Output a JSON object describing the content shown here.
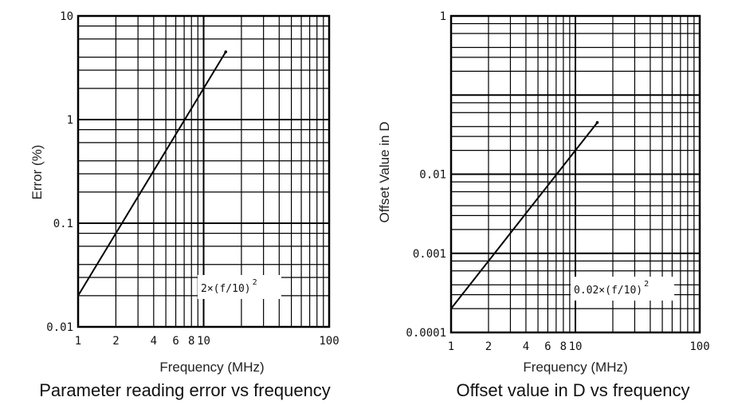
{
  "chart_data": [
    {
      "type": "line",
      "title": "Parameter reading error vs frequency",
      "xlabel": "Frequency (MHz)",
      "ylabel": "Error (%)",
      "xscale": "log",
      "yscale": "log",
      "xlim": [
        1,
        100
      ],
      "ylim": [
        0.01,
        10
      ],
      "grid": true,
      "x_tick_labels": [
        {
          "value": 1,
          "label": "1"
        },
        {
          "value": 2,
          "label": "2"
        },
        {
          "value": 4,
          "label": "4"
        },
        {
          "value": 6,
          "label": "6"
        },
        {
          "value": 8,
          "label": "8"
        },
        {
          "value": 10,
          "label": "10"
        },
        {
          "value": 100,
          "label": "100"
        }
      ],
      "y_tick_labels": [
        {
          "value": 0.01,
          "label": "0.01"
        },
        {
          "value": 0.1,
          "label": "0.1"
        },
        {
          "value": 1,
          "label": "1"
        },
        {
          "value": 10,
          "label": "10"
        }
      ],
      "series": [
        {
          "formula_coefficient": 2,
          "x": [
            1,
            2,
            4,
            6,
            10,
            15
          ],
          "y": [
            0.02,
            0.08,
            0.32,
            0.72,
            2.0,
            4.5
          ]
        }
      ],
      "annotation": {
        "text": "2×(f/10)",
        "superscript": "2"
      }
    },
    {
      "type": "line",
      "title": "Offset value in D vs frequency",
      "xlabel": "Frequency (MHz)",
      "ylabel": "Offset Value in D",
      "xscale": "log",
      "yscale": "log",
      "xlim": [
        1,
        100
      ],
      "ylim": [
        0.0001,
        1
      ],
      "grid": true,
      "x_tick_labels": [
        {
          "value": 1,
          "label": "1"
        },
        {
          "value": 2,
          "label": "2"
        },
        {
          "value": 4,
          "label": "4"
        },
        {
          "value": 6,
          "label": "6"
        },
        {
          "value": 8,
          "label": "8"
        },
        {
          "value": 10,
          "label": "10"
        },
        {
          "value": 100,
          "label": "100"
        }
      ],
      "y_tick_labels": [
        {
          "value": 0.0001,
          "label": "0.0001"
        },
        {
          "value": 0.001,
          "label": "0.001"
        },
        {
          "value": 0.01,
          "label": "0.01"
        },
        {
          "value": 1,
          "label": "1"
        }
      ],
      "series": [
        {
          "formula_coefficient": 0.02,
          "x": [
            1,
            2,
            4,
            6,
            10,
            15
          ],
          "y": [
            0.0002,
            0.0008,
            0.0032,
            0.0072,
            0.02,
            0.045
          ]
        }
      ],
      "annotation": {
        "text": "0.02×(f/10)",
        "superscript": "2"
      }
    }
  ]
}
